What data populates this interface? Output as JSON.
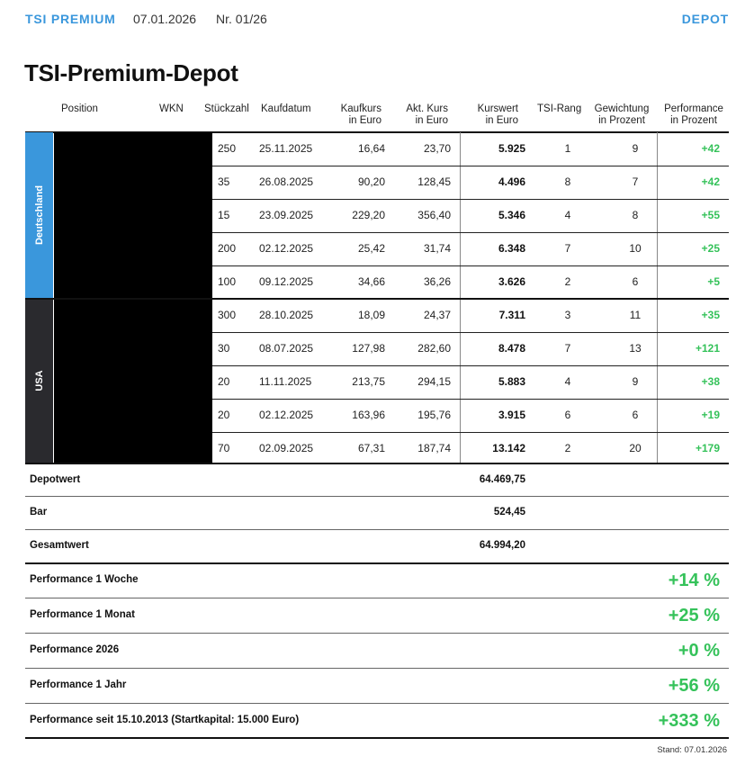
{
  "header": {
    "brand": "TSI PREMIUM",
    "date": "07.01.2026",
    "issue": "Nr. 01/26",
    "section": "DEPOT"
  },
  "title": "TSI-Premium-Depot",
  "columns": {
    "position": "Position",
    "wkn": "WKN",
    "stueckzahl": "Stückzahl",
    "kaufdatum": "Kaufdatum",
    "kaufkurs": "Kaufkurs\nin Euro",
    "akt_kurs": "Akt. Kurs\nin Euro",
    "kurswert": "Kurswert\nin Euro",
    "tsi_rang": "TSI-Rang",
    "gewichtung": "Gewichtung\nin Prozent",
    "performance": "Performance\nin Prozent"
  },
  "regions": [
    {
      "label": "Deutschland",
      "color": "#3a97dc"
    },
    {
      "label": "USA",
      "color": "#2a2a2e"
    }
  ],
  "rows": [
    {
      "qty": "250",
      "date": "25.11.2025",
      "buy": "16,64",
      "now": "23,70",
      "value": "5.925",
      "rank": "1",
      "weight": "9",
      "perf": "+42"
    },
    {
      "qty": "35",
      "date": "26.08.2025",
      "buy": "90,20",
      "now": "128,45",
      "value": "4.496",
      "rank": "8",
      "weight": "7",
      "perf": "+42"
    },
    {
      "qty": "15",
      "date": "23.09.2025",
      "buy": "229,20",
      "now": "356,40",
      "value": "5.346",
      "rank": "4",
      "weight": "8",
      "perf": "+55"
    },
    {
      "qty": "200",
      "date": "02.12.2025",
      "buy": "25,42",
      "now": "31,74",
      "value": "6.348",
      "rank": "7",
      "weight": "10",
      "perf": "+25"
    },
    {
      "qty": "100",
      "date": "09.12.2025",
      "buy": "34,66",
      "now": "36,26",
      "value": "3.626",
      "rank": "2",
      "weight": "6",
      "perf": "+5"
    },
    {
      "qty": "300",
      "date": "28.10.2025",
      "buy": "18,09",
      "now": "24,37",
      "value": "7.311",
      "rank": "3",
      "weight": "11",
      "perf": "+35"
    },
    {
      "qty": "30",
      "date": "08.07.2025",
      "buy": "127,98",
      "now": "282,60",
      "value": "8.478",
      "rank": "7",
      "weight": "13",
      "perf": "+121"
    },
    {
      "qty": "20",
      "date": "11.11.2025",
      "buy": "213,75",
      "now": "294,15",
      "value": "5.883",
      "rank": "4",
      "weight": "9",
      "perf": "+38"
    },
    {
      "qty": "20",
      "date": "02.12.2025",
      "buy": "163,96",
      "now": "195,76",
      "value": "3.915",
      "rank": "6",
      "weight": "6",
      "perf": "+19"
    },
    {
      "qty": "70",
      "date": "02.09.2025",
      "buy": "67,31",
      "now": "187,74",
      "value": "13.142",
      "rank": "2",
      "weight": "20",
      "perf": "+179"
    }
  ],
  "summary": [
    {
      "label": "Depotwert",
      "value": "64.469,75"
    },
    {
      "label": "Bar",
      "value": "524,45"
    },
    {
      "label": "Gesamtwert",
      "value": "64.994,20"
    }
  ],
  "performance": [
    {
      "label": "Performance 1 Woche",
      "value": "+14 %"
    },
    {
      "label": "Performance 1 Monat",
      "value": "+25 %"
    },
    {
      "label": "Performance 2026",
      "value": "+0 %"
    },
    {
      "label": "Performance 1 Jahr",
      "value": "+56 %"
    },
    {
      "label": "Performance seit 15.10.2013 (Startkapital: 15.000 Euro)",
      "value": "+333 %"
    }
  ],
  "stand": "Stand: 07.01.2026",
  "colors": {
    "accent": "#3a97dc",
    "positive": "#35c25a",
    "region_usa": "#2a2a2e"
  }
}
